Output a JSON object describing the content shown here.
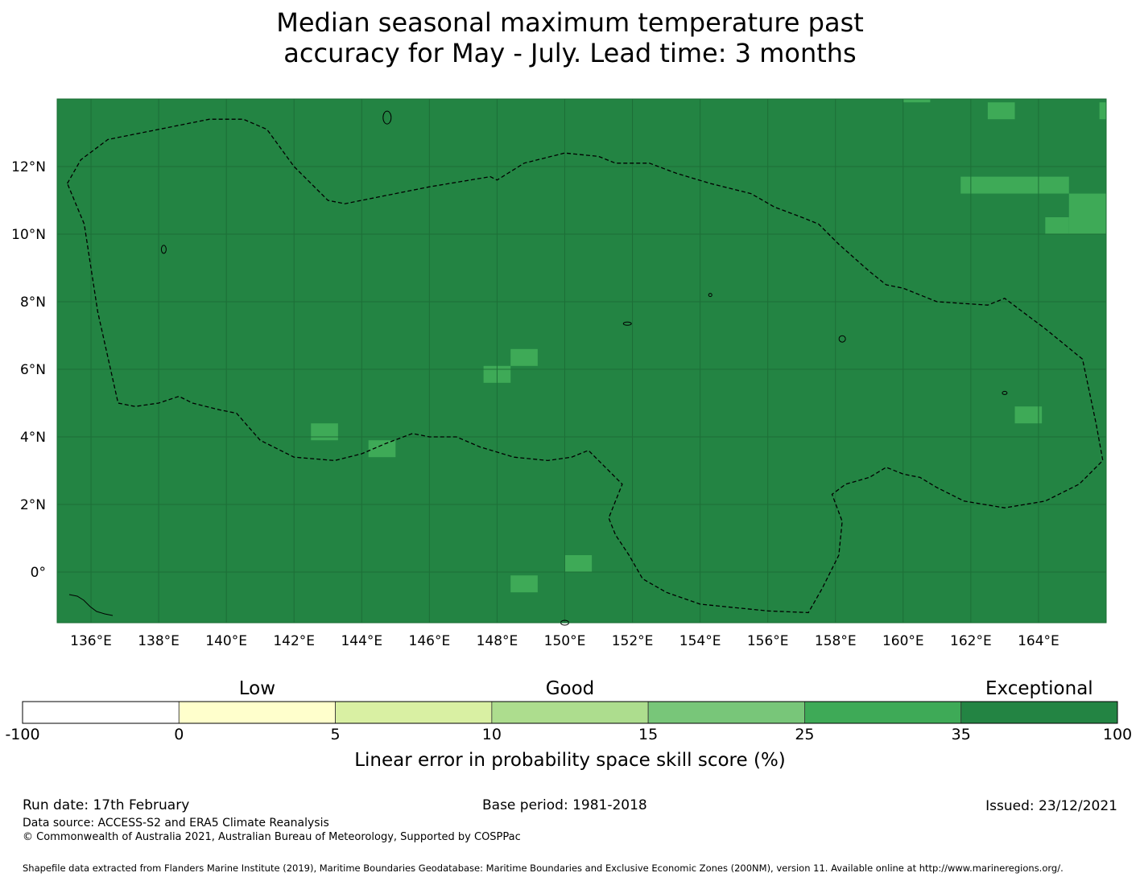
{
  "title_line1": "Median seasonal maximum temperature past",
  "title_line2": "accuracy for May - July. Lead time: 3 months",
  "map": {
    "lon_range": [
      135,
      166
    ],
    "lat_range": [
      -1.5,
      14
    ],
    "base_color": "#238443",
    "outline_color": "#000000",
    "lon_ticks": [
      "136°E",
      "138°E",
      "140°E",
      "142°E",
      "144°E",
      "146°E",
      "148°E",
      "150°E",
      "152°E",
      "154°E",
      "156°E",
      "158°E",
      "160°E",
      "162°E",
      "164°E"
    ],
    "lat_ticks": [
      "12°N",
      "10°N",
      "8°N",
      "6°N",
      "4°N",
      "2°N",
      "0°"
    ],
    "lon_tick_values": [
      136,
      138,
      140,
      142,
      144,
      146,
      148,
      150,
      152,
      154,
      156,
      158,
      160,
      162,
      164
    ],
    "lat_tick_values": [
      12,
      10,
      8,
      6,
      4,
      2,
      0
    ],
    "cells": [
      {
        "lon0": 142.5,
        "lon1": 143.3,
        "lat0": 3.9,
        "lat1": 4.4,
        "class": "25-35"
      },
      {
        "lon0": 144.2,
        "lon1": 145.0,
        "lat0": 3.4,
        "lat1": 3.9,
        "class": "25-35"
      },
      {
        "lon0": 147.6,
        "lon1": 148.4,
        "lat0": 5.6,
        "lat1": 6.1,
        "class": "25-35"
      },
      {
        "lon0": 148.4,
        "lon1": 149.2,
        "lat0": 6.1,
        "lat1": 6.6,
        "class": "25-35"
      },
      {
        "lon0": 150.0,
        "lon1": 150.8,
        "lat0": 0.0,
        "lat1": 0.5,
        "class": "25-35"
      },
      {
        "lon0": 148.4,
        "lon1": 149.2,
        "lat0": -0.6,
        "lat1": -0.1,
        "class": "25-35"
      },
      {
        "lon0": 163.3,
        "lon1": 164.1,
        "lat0": 4.4,
        "lat1": 4.9,
        "class": "25-35"
      },
      {
        "lon0": 161.7,
        "lon1": 164.9,
        "lat0": 11.2,
        "lat1": 11.7,
        "class": "25-35"
      },
      {
        "lon0": 164.9,
        "lon1": 166.0,
        "lat0": 10.0,
        "lat1": 11.2,
        "class": "25-35"
      },
      {
        "lon0": 164.2,
        "lon1": 164.9,
        "lat0": 10.0,
        "lat1": 10.5,
        "class": "25-35"
      },
      {
        "lon0": 162.5,
        "lon1": 163.3,
        "lat0": 13.4,
        "lat1": 13.9,
        "class": "25-35"
      },
      {
        "lon0": 165.8,
        "lon1": 166.0,
        "lat0": 13.4,
        "lat1": 13.9,
        "class": "25-35"
      },
      {
        "lon0": 160.0,
        "lon1": 160.8,
        "lat0": 13.9,
        "lat1": 14.0,
        "class": "25-35"
      }
    ],
    "eez_boundary": [
      [
        135.3,
        11.5
      ],
      [
        135.7,
        12.2
      ],
      [
        136.5,
        12.8
      ],
      [
        138,
        13.1
      ],
      [
        139.5,
        13.4
      ],
      [
        140.5,
        13.4
      ],
      [
        141.2,
        13.1
      ],
      [
        142,
        12.0
      ],
      [
        143,
        11.0
      ],
      [
        143.5,
        10.9
      ],
      [
        144.5,
        11.1
      ],
      [
        146,
        11.4
      ],
      [
        147.8,
        11.7
      ],
      [
        148,
        11.6
      ],
      [
        148.8,
        12.1
      ],
      [
        150,
        12.4
      ],
      [
        151,
        12.3
      ],
      [
        151.5,
        12.1
      ],
      [
        152.5,
        12.1
      ],
      [
        153.3,
        11.8
      ],
      [
        154.3,
        11.5
      ],
      [
        155.5,
        11.2
      ],
      [
        156.2,
        10.8
      ],
      [
        157,
        10.5
      ],
      [
        157.5,
        10.3
      ],
      [
        158.1,
        9.7
      ],
      [
        159,
        8.9
      ],
      [
        159.5,
        8.5
      ],
      [
        160,
        8.4
      ],
      [
        161,
        8.0
      ],
      [
        162.5,
        7.9
      ],
      [
        163,
        8.1
      ],
      [
        164.2,
        7.2
      ],
      [
        165.3,
        6.3
      ],
      [
        165.7,
        4.4
      ],
      [
        165.9,
        3.3
      ],
      [
        165.2,
        2.6
      ],
      [
        164.2,
        2.1
      ],
      [
        163,
        1.9
      ],
      [
        161.8,
        2.1
      ],
      [
        161,
        2.5
      ],
      [
        160.5,
        2.8
      ],
      [
        160,
        2.9
      ],
      [
        159.5,
        3.1
      ],
      [
        159,
        2.8
      ],
      [
        158.3,
        2.6
      ],
      [
        157.9,
        2.3
      ],
      [
        158.2,
        1.5
      ],
      [
        158.1,
        0.5
      ],
      [
        157.6,
        -0.5
      ],
      [
        157.2,
        -1.2
      ],
      [
        156,
        -1.15
      ],
      [
        155,
        -1.05
      ],
      [
        154,
        -0.95
      ],
      [
        153,
        -0.6
      ],
      [
        152.3,
        -0.2
      ],
      [
        151.9,
        0.5
      ],
      [
        151.5,
        1.1
      ],
      [
        151.3,
        1.6
      ],
      [
        151.5,
        2.1
      ],
      [
        151.7,
        2.6
      ],
      [
        151.2,
        3.1
      ],
      [
        150.7,
        3.6
      ],
      [
        150.2,
        3.4
      ],
      [
        149.5,
        3.3
      ],
      [
        148.5,
        3.4
      ],
      [
        147.5,
        3.7
      ],
      [
        146.8,
        4.0
      ],
      [
        146,
        4.0
      ],
      [
        145.5,
        4.1
      ],
      [
        144.7,
        3.8
      ],
      [
        144,
        3.5
      ],
      [
        143.2,
        3.3
      ],
      [
        142,
        3.4
      ],
      [
        141,
        3.9
      ],
      [
        140.3,
        4.7
      ],
      [
        139.8,
        4.8
      ],
      [
        139,
        5.0
      ],
      [
        138.6,
        5.2
      ],
      [
        138,
        5.0
      ],
      [
        137.3,
        4.9
      ],
      [
        136.8,
        5.0
      ],
      [
        136.2,
        7.7
      ],
      [
        135.8,
        10.3
      ],
      [
        135.3,
        11.5
      ]
    ]
  },
  "colorbar": {
    "categories": [
      {
        "label": "Low",
        "value": 2.5
      },
      {
        "label": "Good",
        "value": 12.5
      },
      {
        "label": "Exceptional",
        "value": 67.5
      }
    ],
    "bins": [
      {
        "from": "-100",
        "to": "0",
        "color": "#ffffff"
      },
      {
        "from": "0",
        "to": "5",
        "color": "#ffffcc"
      },
      {
        "from": "5",
        "to": "10",
        "color": "#d9f0a3"
      },
      {
        "from": "10",
        "to": "15",
        "color": "#addd8e"
      },
      {
        "from": "15",
        "to": "25",
        "color": "#78c679"
      },
      {
        "from": "25",
        "to": "35",
        "color": "#3eaa57"
      },
      {
        "from": "35",
        "to": "100",
        "color": "#238443"
      }
    ],
    "ticks": [
      "-100",
      "0",
      "5",
      "10",
      "15",
      "25",
      "35",
      "100"
    ],
    "label": "Linear error in probability space skill score (%)"
  },
  "footer": {
    "run_date": "Run date: 17th February",
    "base_period": "Base period: 1981-2018",
    "issued": "Issued: 23/12/2021",
    "data_source": "Data source: ACCESS-S2 and ERA5 Climate Reanalysis",
    "copyright": "© Commonwealth of Australia 2021, Australian Bureau of Meteorology, Supported by COSPPac",
    "shapefile": "Shapefile data extracted from Flanders Marine Institute (2019), Maritime Boundaries Geodatabase: Maritime Boundaries and Exclusive Economic Zones (200NM), version 11. Available online at http://www.marineregions.org/."
  }
}
